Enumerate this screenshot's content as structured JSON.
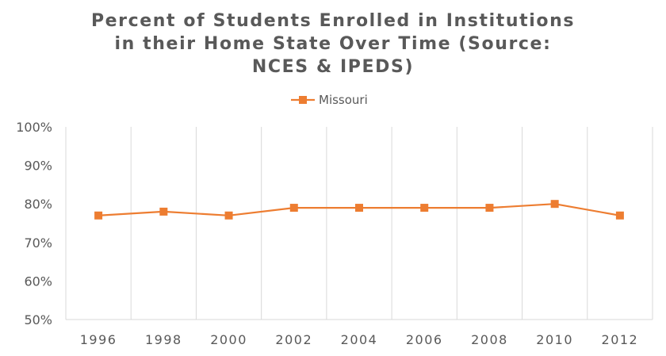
{
  "chart_data": {
    "type": "line",
    "title_lines": [
      "Percent of Students Enrolled in Institutions",
      "in their Home State Over Time (Source:",
      "NCES & IPEDS)"
    ],
    "xlabel": "",
    "ylabel": "",
    "categories": [
      "1996",
      "1998",
      "2000",
      "2002",
      "2004",
      "2006",
      "2008",
      "2010",
      "2012"
    ],
    "series": [
      {
        "name": "Missouri",
        "color": "#ED7D31",
        "marker": "square",
        "values": [
          77,
          78,
          77,
          79,
          79,
          79,
          79,
          80,
          77
        ]
      }
    ],
    "ylim": [
      50,
      100
    ],
    "yticks": [
      50,
      60,
      70,
      80,
      90,
      100
    ],
    "ytick_format": "percent",
    "grid": {
      "horizontal": false,
      "vertical": true
    },
    "legend": {
      "position": "top-center"
    }
  }
}
